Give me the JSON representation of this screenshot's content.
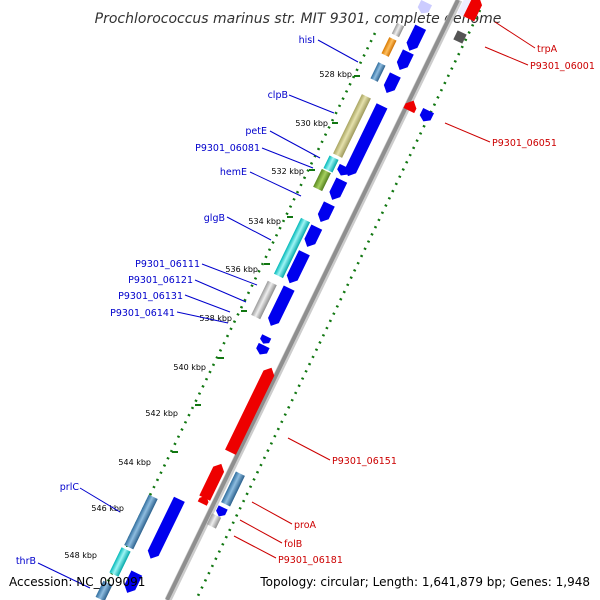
{
  "title": "Prochlorococcus marinus str. MIT 9301, complete genome",
  "accession": "Accession: NC_009091",
  "topology": "Topology: circular; Length: 1,641,879 bp; Genes: 1,948",
  "ticks": [
    "528 kbp",
    "530 kbp",
    "532 kbp",
    "534 kbp",
    "536 kbp",
    "538 kbp",
    "540 kbp",
    "542 kbp",
    "544 kbp",
    "546 kbp",
    "548 kbp"
  ],
  "left_labels": [
    "hisI",
    "clpB",
    "petE",
    "P9301_06081",
    "hemE",
    "glgB",
    "P9301_06111",
    "P9301_06121",
    "P9301_06131",
    "P9301_06141",
    "prlC",
    "thrB"
  ],
  "right_labels": [
    "trpA",
    "P9301_06001",
    "P9301_06051",
    "P9301_06151",
    "proA",
    "folB",
    "P9301_06181"
  ],
  "colors": {
    "forward_label": "#0000cc",
    "reverse_label": "#cc0000",
    "forward_arrow": "#0000ee",
    "reverse_arrow": "#ee0000",
    "backbone": "#999999",
    "dots": "#117711"
  }
}
